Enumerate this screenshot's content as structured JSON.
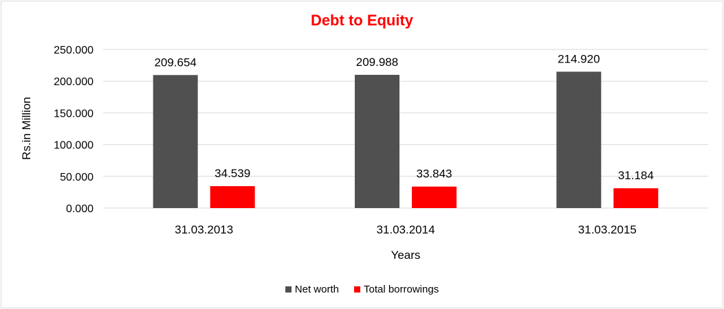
{
  "chart_data": {
    "type": "bar",
    "title": "Debt to Equity",
    "xlabel": "Years",
    "ylabel": "Rs.in Million",
    "categories": [
      "31.03.2013",
      "31.03.2014",
      "31.03.2015"
    ],
    "series": [
      {
        "name": "Net worth",
        "color": "#505050",
        "values": [
          209.654,
          209.988,
          214.92
        ],
        "labels": [
          "209.654",
          "209.988",
          "214.920"
        ]
      },
      {
        "name": "Total borrowings",
        "color": "#ff0000",
        "values": [
          34.539,
          33.843,
          31.184
        ],
        "labels": [
          "34.539",
          "33.843",
          "31.184"
        ]
      }
    ],
    "ylim": [
      0,
      250
    ],
    "yticks": [
      0,
      50,
      100,
      150,
      200,
      250
    ],
    "ytick_labels": [
      "0.000",
      "50.000",
      "100.000",
      "150.000",
      "200.000",
      "250.000"
    ],
    "grid": true,
    "legend_position": "bottom",
    "title_color": "#ff0000"
  }
}
